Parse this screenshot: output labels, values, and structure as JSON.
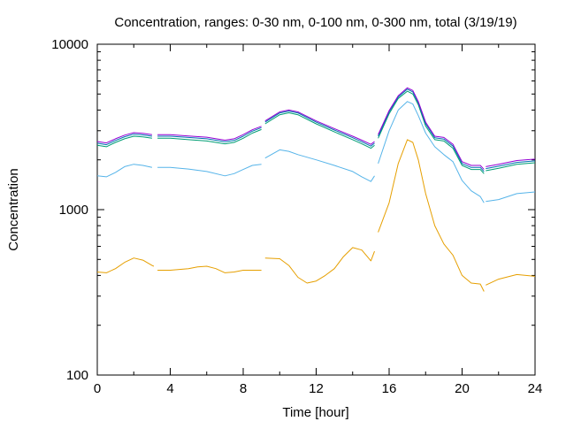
{
  "chart_data": {
    "type": "line",
    "title": "Concentration, ranges: 0-30 nm, 0-100 nm, 0-300 nm, total (3/19/19)",
    "xlabel": "Time [hour]",
    "ylabel": "Concentration",
    "xlim": [
      0,
      24
    ],
    "ylim": [
      100,
      10000
    ],
    "yscale": "log",
    "grid": false,
    "legend": "none",
    "xticks": [
      0,
      4,
      8,
      12,
      16,
      20,
      24
    ],
    "xtick_labels": [
      "0",
      "4",
      "8",
      "12",
      "16",
      "20",
      "24"
    ],
    "yticks": [
      100,
      1000,
      10000
    ],
    "ytick_labels": [
      "100",
      "1000",
      "10000"
    ],
    "series": [
      {
        "color": "#e69f00",
        "points": [
          [
            0,
            420
          ],
          [
            0.5,
            415
          ],
          [
            1,
            440
          ],
          [
            1.5,
            480
          ],
          [
            2,
            510
          ],
          [
            2.5,
            495
          ],
          [
            3,
            460
          ],
          [
            3.1,
            455
          ],
          null,
          [
            3.3,
            430
          ],
          [
            4,
            430
          ],
          [
            5,
            440
          ],
          [
            5.5,
            450
          ],
          [
            6,
            455
          ],
          [
            6.5,
            440
          ],
          [
            7,
            415
          ],
          [
            7.5,
            420
          ],
          [
            8,
            430
          ],
          [
            8.5,
            430
          ],
          [
            9,
            430
          ],
          null,
          [
            9.2,
            510
          ],
          [
            10,
            505
          ],
          [
            10.5,
            460
          ],
          [
            11,
            390
          ],
          [
            11.5,
            360
          ],
          [
            12,
            370
          ],
          [
            12.5,
            400
          ],
          [
            13,
            440
          ],
          [
            13.5,
            520
          ],
          [
            14,
            590
          ],
          [
            14.5,
            570
          ],
          [
            15,
            490
          ],
          [
            15.2,
            560
          ],
          null,
          [
            15.4,
            730
          ],
          [
            16,
            1100
          ],
          [
            16.5,
            1900
          ],
          [
            17,
            2650
          ],
          [
            17.3,
            2550
          ],
          [
            17.6,
            2000
          ],
          [
            18,
            1250
          ],
          [
            18.5,
            800
          ],
          [
            19,
            620
          ],
          [
            19.5,
            530
          ],
          [
            20,
            400
          ],
          [
            20.5,
            360
          ],
          [
            21,
            355
          ],
          [
            21.2,
            320
          ],
          null,
          [
            21.3,
            350
          ],
          [
            22,
            380
          ],
          [
            23,
            405
          ],
          [
            24,
            395
          ]
        ]
      },
      {
        "color": "#56b4e9",
        "points": [
          [
            0,
            1600
          ],
          [
            0.5,
            1580
          ],
          [
            1,
            1680
          ],
          [
            1.5,
            1820
          ],
          [
            2,
            1880
          ],
          [
            2.5,
            1850
          ],
          [
            3,
            1800
          ],
          null,
          [
            3.3,
            1800
          ],
          [
            4,
            1800
          ],
          [
            5,
            1760
          ],
          [
            6,
            1700
          ],
          [
            7,
            1600
          ],
          [
            7.5,
            1650
          ],
          [
            8,
            1750
          ],
          [
            8.5,
            1850
          ],
          [
            9,
            1880
          ],
          null,
          [
            9.2,
            2050
          ],
          [
            10,
            2300
          ],
          [
            10.5,
            2250
          ],
          [
            11,
            2150
          ],
          [
            12,
            2000
          ],
          [
            13,
            1850
          ],
          [
            14,
            1700
          ],
          [
            14.5,
            1580
          ],
          [
            15,
            1480
          ],
          [
            15.2,
            1600
          ],
          null,
          [
            15.4,
            1900
          ],
          [
            16,
            3000
          ],
          [
            16.5,
            4000
          ],
          [
            17,
            4500
          ],
          [
            17.3,
            4350
          ],
          [
            17.6,
            3700
          ],
          [
            18,
            2900
          ],
          [
            18.5,
            2400
          ],
          [
            19,
            2150
          ],
          [
            19.5,
            1950
          ],
          [
            20,
            1500
          ],
          [
            20.5,
            1300
          ],
          [
            21,
            1200
          ],
          [
            21.2,
            1100
          ],
          null,
          [
            21.3,
            1120
          ],
          [
            22,
            1150
          ],
          [
            23,
            1250
          ],
          [
            24,
            1280
          ]
        ]
      },
      {
        "color": "#009e73",
        "points": [
          [
            0,
            2450
          ],
          [
            0.5,
            2400
          ],
          [
            1,
            2550
          ],
          [
            1.5,
            2680
          ],
          [
            2,
            2780
          ],
          [
            2.5,
            2750
          ],
          [
            3,
            2700
          ],
          null,
          [
            3.3,
            2700
          ],
          [
            4,
            2700
          ],
          [
            5,
            2650
          ],
          [
            6,
            2600
          ],
          [
            7,
            2500
          ],
          [
            7.5,
            2550
          ],
          [
            8,
            2700
          ],
          [
            8.5,
            2900
          ],
          [
            9,
            3050
          ],
          null,
          [
            9.2,
            3300
          ],
          [
            10,
            3750
          ],
          [
            10.5,
            3850
          ],
          [
            11,
            3750
          ],
          [
            12,
            3300
          ],
          [
            13,
            2950
          ],
          [
            14,
            2650
          ],
          [
            14.5,
            2500
          ],
          [
            15,
            2350
          ],
          [
            15.2,
            2450
          ],
          null,
          [
            15.4,
            2700
          ],
          [
            16,
            3800
          ],
          [
            16.5,
            4700
          ],
          [
            17,
            5200
          ],
          [
            17.3,
            5000
          ],
          [
            17.6,
            4300
          ],
          [
            18,
            3200
          ],
          [
            18.5,
            2650
          ],
          [
            19,
            2600
          ],
          [
            19.5,
            2350
          ],
          [
            20,
            1850
          ],
          [
            20.5,
            1750
          ],
          [
            21,
            1750
          ],
          [
            21.2,
            1650
          ],
          null,
          [
            21.3,
            1720
          ],
          [
            22,
            1780
          ],
          [
            23,
            1880
          ],
          [
            24,
            1920
          ]
        ]
      },
      {
        "color": "#0072b2",
        "points": [
          [
            0,
            2520
          ],
          [
            0.5,
            2470
          ],
          [
            1,
            2620
          ],
          [
            1.5,
            2760
          ],
          [
            2,
            2860
          ],
          [
            2.5,
            2830
          ],
          [
            3,
            2780
          ],
          null,
          [
            3.3,
            2780
          ],
          [
            4,
            2780
          ],
          [
            5,
            2730
          ],
          [
            6,
            2680
          ],
          [
            7,
            2570
          ],
          [
            7.5,
            2620
          ],
          [
            8,
            2780
          ],
          [
            8.5,
            2980
          ],
          [
            9,
            3130
          ],
          null,
          [
            9.2,
            3380
          ],
          [
            10,
            3840
          ],
          [
            10.5,
            3940
          ],
          [
            11,
            3840
          ],
          [
            12,
            3380
          ],
          [
            13,
            3030
          ],
          [
            14,
            2720
          ],
          [
            14.5,
            2570
          ],
          [
            15,
            2420
          ],
          [
            15.2,
            2520
          ],
          null,
          [
            15.4,
            2780
          ],
          [
            16,
            3900
          ],
          [
            16.5,
            4800
          ],
          [
            17,
            5350
          ],
          [
            17.3,
            5150
          ],
          [
            17.6,
            4420
          ],
          [
            18,
            3300
          ],
          [
            18.5,
            2720
          ],
          [
            19,
            2670
          ],
          [
            19.5,
            2420
          ],
          [
            20,
            1900
          ],
          [
            20.5,
            1800
          ],
          [
            21,
            1800
          ],
          [
            21.2,
            1700
          ],
          null,
          [
            21.3,
            1770
          ],
          [
            22,
            1830
          ],
          [
            23,
            1930
          ],
          [
            24,
            1970
          ]
        ]
      },
      {
        "color": "#9400d3",
        "points": [
          [
            0,
            2580
          ],
          [
            0.5,
            2530
          ],
          [
            1,
            2680
          ],
          [
            1.5,
            2820
          ],
          [
            2,
            2920
          ],
          [
            2.5,
            2890
          ],
          [
            3,
            2840
          ],
          null,
          [
            3.3,
            2840
          ],
          [
            4,
            2840
          ],
          [
            5,
            2790
          ],
          [
            6,
            2740
          ],
          [
            7,
            2630
          ],
          [
            7.5,
            2680
          ],
          [
            8,
            2840
          ],
          [
            8.5,
            3040
          ],
          [
            9,
            3190
          ],
          null,
          [
            9.2,
            3440
          ],
          [
            10,
            3900
          ],
          [
            10.5,
            4000
          ],
          [
            11,
            3900
          ],
          [
            12,
            3440
          ],
          [
            13,
            3090
          ],
          [
            14,
            2780
          ],
          [
            14.5,
            2630
          ],
          [
            15,
            2480
          ],
          [
            15.2,
            2580
          ],
          null,
          [
            15.4,
            2840
          ],
          [
            16,
            3970
          ],
          [
            16.5,
            4880
          ],
          [
            17,
            5450
          ],
          [
            17.3,
            5250
          ],
          [
            17.6,
            4500
          ],
          [
            18,
            3380
          ],
          [
            18.5,
            2780
          ],
          [
            19,
            2730
          ],
          [
            19.5,
            2480
          ],
          [
            20,
            1950
          ],
          [
            20.5,
            1850
          ],
          [
            21,
            1850
          ],
          [
            21.2,
            1750
          ],
          null,
          [
            21.3,
            1820
          ],
          [
            22,
            1880
          ],
          [
            23,
            1980
          ],
          [
            24,
            2020
          ]
        ]
      }
    ]
  }
}
